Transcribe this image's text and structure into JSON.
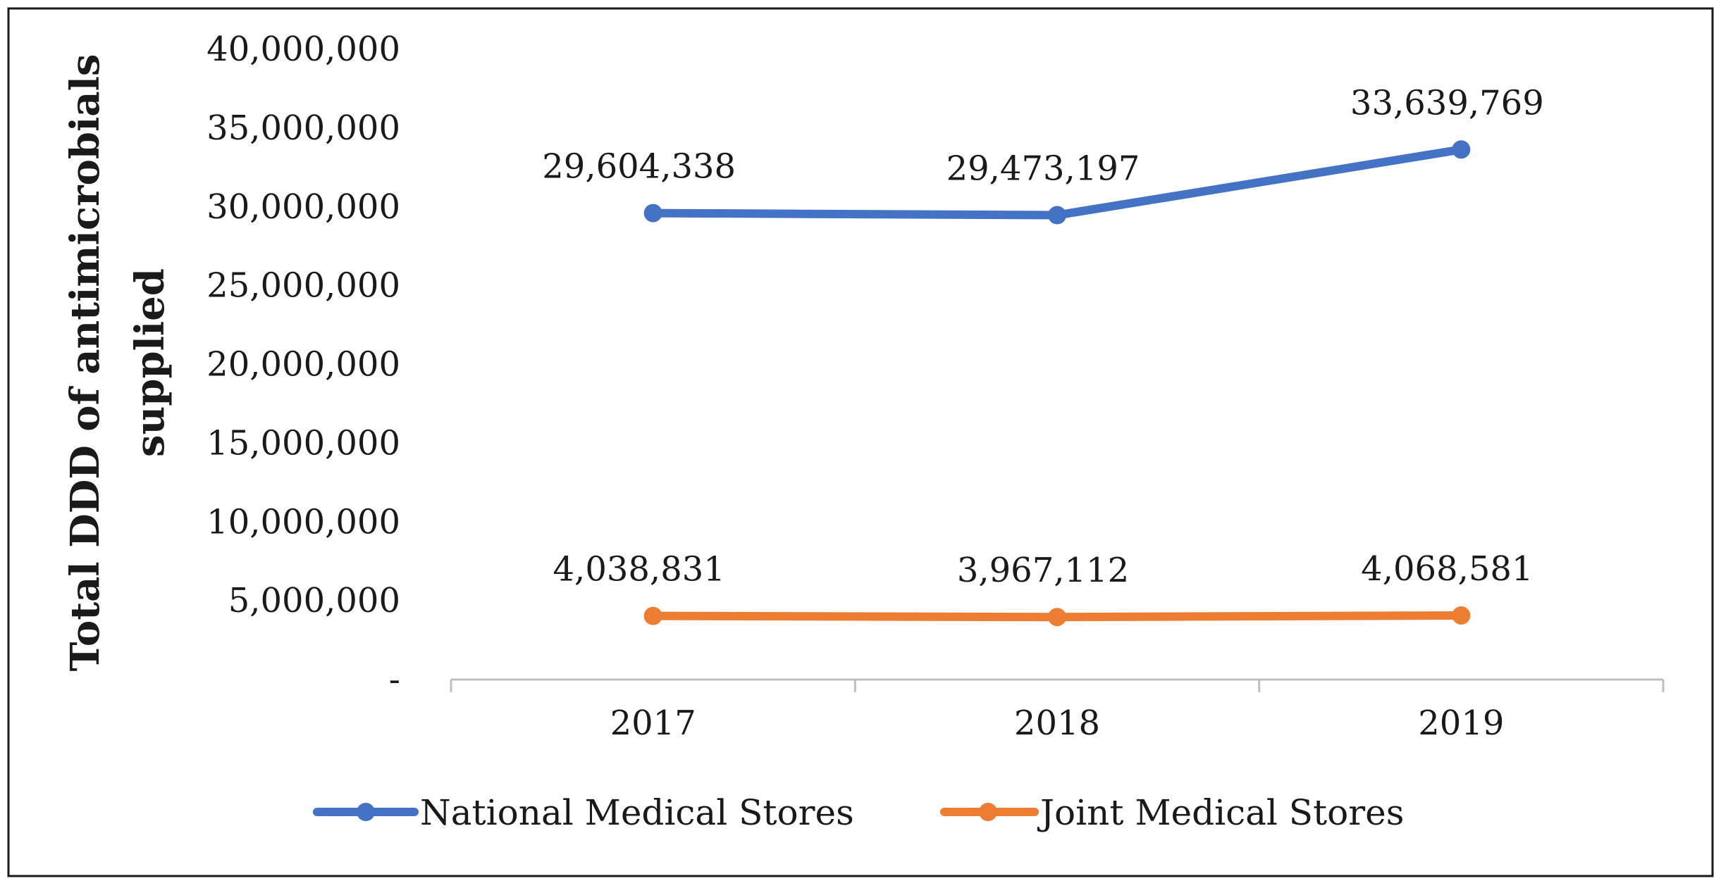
{
  "chart_data": {
    "type": "line",
    "title": "",
    "xlabel": "",
    "ylabel": [
      "Total DDD of antimicrobials",
      "supplied"
    ],
    "categories": [
      "2017",
      "2018",
      "2019"
    ],
    "ylim": [
      0,
      40000000
    ],
    "y_ticks": [
      0,
      5000000,
      10000000,
      15000000,
      20000000,
      25000000,
      30000000,
      35000000,
      40000000
    ],
    "y_tick_labels": [
      "-",
      "5,000,000",
      "10,000,000",
      "15,000,000",
      "20,000,000",
      "25,000,000",
      "30,000,000",
      "35,000,000",
      "40,000,000"
    ],
    "grid": false,
    "legend_position": "bottom",
    "series": [
      {
        "name": "National Medical Stores",
        "color": "#4472C4",
        "values": [
          29604338,
          29473197,
          33639769
        ],
        "labels": [
          "29,604,338",
          "29,473,197",
          "33,639,769"
        ]
      },
      {
        "name": "Joint Medical Stores",
        "color": "#ED7D31",
        "values": [
          4038831,
          3967112,
          4068581
        ],
        "labels": [
          "4,038,831",
          "3,967,112",
          "4,068,581"
        ]
      }
    ]
  }
}
